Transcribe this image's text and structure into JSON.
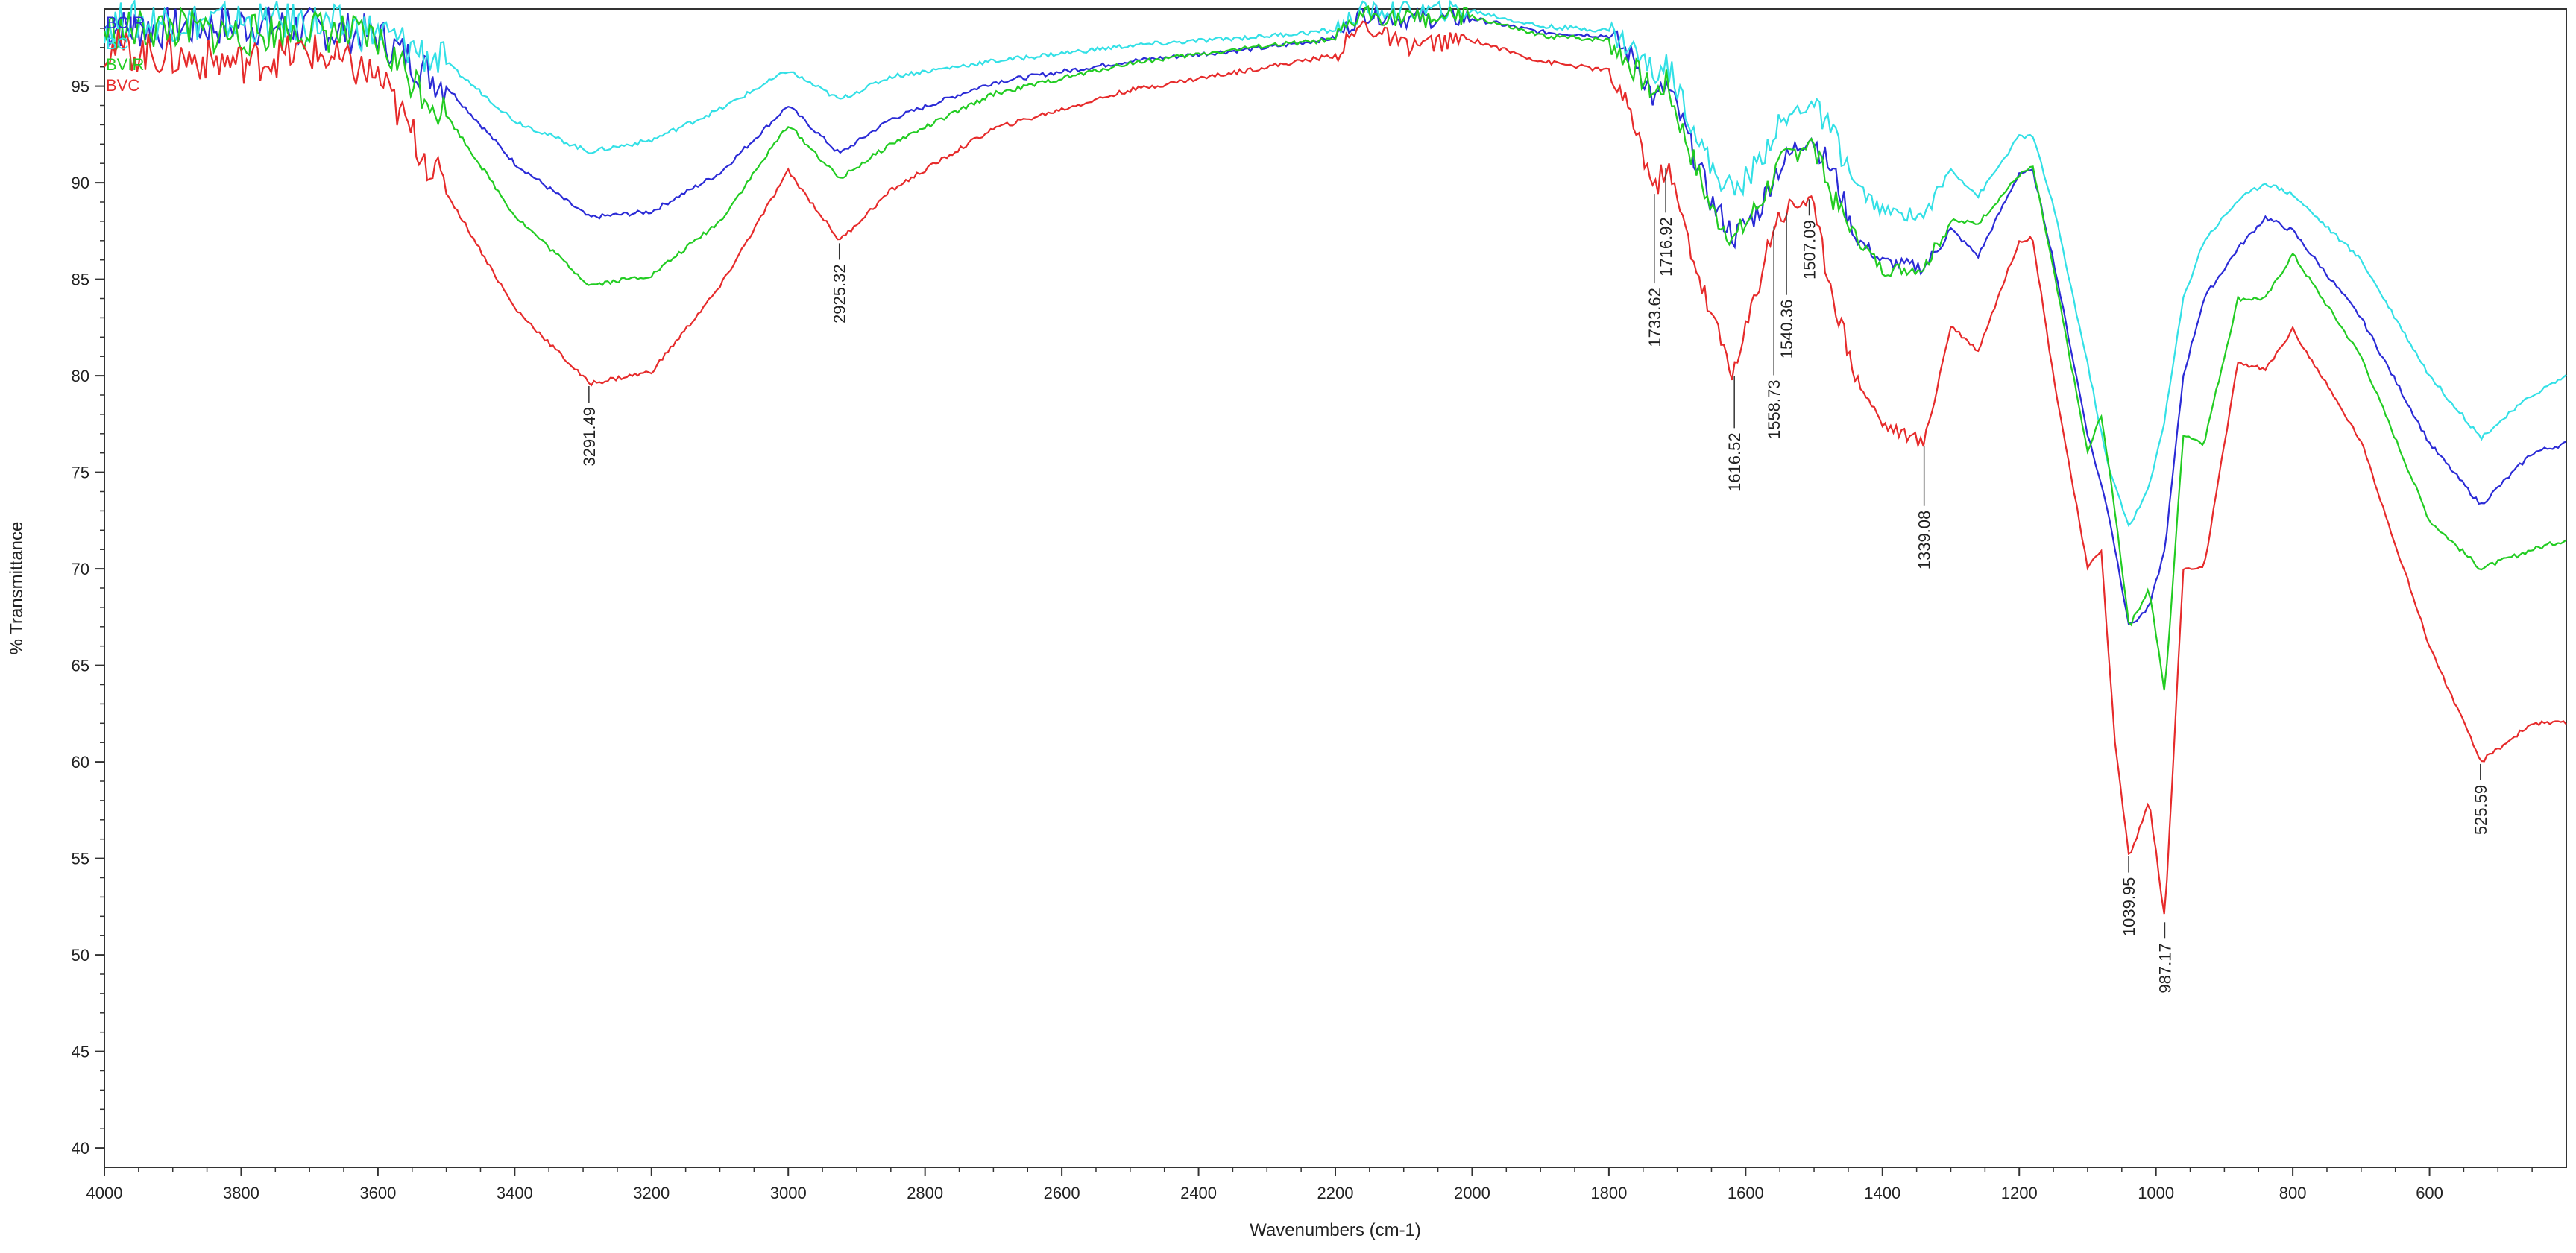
{
  "chart_data": {
    "type": "line",
    "xlabel": "Wavenumbers (cm-1)",
    "ylabel": "% Transmittance",
    "xlim": [
      4000,
      400
    ],
    "ylim": [
      39,
      99
    ],
    "x_reversed": true,
    "x_ticks": [
      4000,
      3800,
      3600,
      3400,
      3200,
      3000,
      2800,
      2600,
      2400,
      2200,
      2000,
      1800,
      1600,
      1400,
      1200,
      1000,
      800,
      600
    ],
    "y_ticks": [
      40,
      45,
      50,
      55,
      60,
      65,
      70,
      75,
      80,
      85,
      90,
      95
    ],
    "grid": false,
    "legend_position": "top-left",
    "series": [
      {
        "name": "BCIR",
        "color": "#2b2bd6",
        "points": [
          [
            4000,
            98
          ],
          [
            3900,
            98
          ],
          [
            3800,
            98.2
          ],
          [
            3700,
            98
          ],
          [
            3600,
            97.6
          ],
          [
            3500,
            95
          ],
          [
            3400,
            91
          ],
          [
            3291,
            88.2
          ],
          [
            3200,
            88.5
          ],
          [
            3100,
            90.5
          ],
          [
            3000,
            94
          ],
          [
            2925,
            91.5
          ],
          [
            2850,
            93.3
          ],
          [
            2700,
            95.2
          ],
          [
            2500,
            96.3
          ],
          [
            2300,
            97
          ],
          [
            2200,
            97.5
          ],
          [
            2160,
            98.8
          ],
          [
            2100,
            98.5
          ],
          [
            2000,
            98.5
          ],
          [
            1900,
            97.8
          ],
          [
            1800,
            97.6
          ],
          [
            1760,
            96.3
          ],
          [
            1733,
            94.2
          ],
          [
            1716,
            95
          ],
          [
            1700,
            93.8
          ],
          [
            1650,
            89
          ],
          [
            1616,
            87.2
          ],
          [
            1580,
            88.6
          ],
          [
            1558,
            90.5
          ],
          [
            1540,
            91.2
          ],
          [
            1507,
            92.6
          ],
          [
            1470,
            90.4
          ],
          [
            1440,
            87.2
          ],
          [
            1400,
            85.9
          ],
          [
            1339,
            85.6
          ],
          [
            1300,
            87.6
          ],
          [
            1260,
            86.2
          ],
          [
            1200,
            90.5
          ],
          [
            1180,
            90.6
          ],
          [
            1150,
            86
          ],
          [
            1100,
            77
          ],
          [
            1070,
            73
          ],
          [
            1039,
            67
          ],
          [
            1010,
            68
          ],
          [
            987,
            71
          ],
          [
            960,
            80
          ],
          [
            930,
            84
          ],
          [
            880,
            86.6
          ],
          [
            840,
            88.2
          ],
          [
            800,
            87.5
          ],
          [
            700,
            83
          ],
          [
            600,
            76.5
          ],
          [
            525,
            73.3
          ],
          [
            450,
            76
          ],
          [
            400,
            76.5
          ]
        ]
      },
      {
        "name": "BC",
        "color": "#33e0e6",
        "points": [
          [
            4000,
            98.3
          ],
          [
            3900,
            98.4
          ],
          [
            3800,
            98.3
          ],
          [
            3700,
            98.3
          ],
          [
            3600,
            97.8
          ],
          [
            3500,
            96.2
          ],
          [
            3400,
            93.2
          ],
          [
            3291,
            91.6
          ],
          [
            3200,
            92.2
          ],
          [
            3100,
            93.8
          ],
          [
            3000,
            95.8
          ],
          [
            2925,
            94.3
          ],
          [
            2850,
            95.5
          ],
          [
            2700,
            96.3
          ],
          [
            2500,
            97.1
          ],
          [
            2300,
            97.6
          ],
          [
            2200,
            97.9
          ],
          [
            2160,
            98.9
          ],
          [
            2100,
            98.9
          ],
          [
            2000,
            98.9
          ],
          [
            1900,
            98.1
          ],
          [
            1800,
            97.9
          ],
          [
            1760,
            96.8
          ],
          [
            1733,
            95.6
          ],
          [
            1716,
            96.2
          ],
          [
            1700,
            95
          ],
          [
            1650,
            90.7
          ],
          [
            1616,
            89.5
          ],
          [
            1580,
            91.1
          ],
          [
            1558,
            92.7
          ],
          [
            1540,
            93.2
          ],
          [
            1507,
            94.3
          ],
          [
            1470,
            92.4
          ],
          [
            1440,
            89.9
          ],
          [
            1400,
            88.5
          ],
          [
            1339,
            88.3
          ],
          [
            1300,
            90.7
          ],
          [
            1260,
            89.3
          ],
          [
            1200,
            92.4
          ],
          [
            1180,
            92.4
          ],
          [
            1150,
            88.8
          ],
          [
            1100,
            80.6
          ],
          [
            1070,
            75.3
          ],
          [
            1039,
            72.2
          ],
          [
            1010,
            74.2
          ],
          [
            987,
            77.8
          ],
          [
            960,
            84
          ],
          [
            930,
            87
          ],
          [
            880,
            89.1
          ],
          [
            840,
            90
          ],
          [
            800,
            89.4
          ],
          [
            700,
            86
          ],
          [
            600,
            80
          ],
          [
            525,
            76.8
          ],
          [
            450,
            79
          ],
          [
            400,
            80
          ]
        ]
      },
      {
        "name": "BVIR",
        "color": "#22cc22",
        "points": [
          [
            4000,
            97.8
          ],
          [
            3900,
            98
          ],
          [
            3800,
            97.6
          ],
          [
            3700,
            98
          ],
          [
            3600,
            97.3
          ],
          [
            3500,
            93.5
          ],
          [
            3400,
            88.3
          ],
          [
            3291,
            84.7
          ],
          [
            3200,
            85.2
          ],
          [
            3100,
            88
          ],
          [
            3000,
            93
          ],
          [
            2925,
            90.2
          ],
          [
            2850,
            92
          ],
          [
            2700,
            94.6
          ],
          [
            2500,
            96.2
          ],
          [
            2300,
            97.1
          ],
          [
            2200,
            97.4
          ],
          [
            2160,
            98.8
          ],
          [
            2100,
            98.5
          ],
          [
            2000,
            98.6
          ],
          [
            1900,
            97.6
          ],
          [
            1800,
            97.4
          ],
          [
            1760,
            95.8
          ],
          [
            1733,
            94.6
          ],
          [
            1716,
            95.2
          ],
          [
            1700,
            93.5
          ],
          [
            1650,
            88.6
          ],
          [
            1616,
            87.1
          ],
          [
            1580,
            88.9
          ],
          [
            1558,
            90.5
          ],
          [
            1540,
            91.3
          ],
          [
            1507,
            92.3
          ],
          [
            1470,
            89
          ],
          [
            1440,
            87.3
          ],
          [
            1400,
            85.5
          ],
          [
            1339,
            85.6
          ],
          [
            1300,
            88
          ],
          [
            1260,
            87.9
          ],
          [
            1200,
            90.4
          ],
          [
            1180,
            90.8
          ],
          [
            1150,
            85.5
          ],
          [
            1100,
            76
          ],
          [
            1080,
            78
          ],
          [
            1060,
            73
          ],
          [
            1039,
            67
          ],
          [
            1010,
            69
          ],
          [
            987,
            63.5
          ],
          [
            960,
            77
          ],
          [
            930,
            76.5
          ],
          [
            880,
            84
          ],
          [
            840,
            84
          ],
          [
            800,
            86.3
          ],
          [
            700,
            81
          ],
          [
            600,
            72.5
          ],
          [
            525,
            70
          ],
          [
            450,
            71
          ],
          [
            400,
            71.5
          ]
        ]
      },
      {
        "name": "BVC",
        "color": "#e62b2b",
        "points": [
          [
            4000,
            97
          ],
          [
            3900,
            96.5
          ],
          [
            3800,
            96.2
          ],
          [
            3700,
            96.8
          ],
          [
            3600,
            95.5
          ],
          [
            3500,
            89.5
          ],
          [
            3400,
            83.5
          ],
          [
            3291,
            79.6
          ],
          [
            3200,
            80.2
          ],
          [
            3100,
            84.6
          ],
          [
            3000,
            90.6
          ],
          [
            2925,
            87
          ],
          [
            2850,
            89.6
          ],
          [
            2700,
            92.8
          ],
          [
            2500,
            94.8
          ],
          [
            2300,
            96
          ],
          [
            2200,
            96.6
          ],
          [
            2160,
            98.2
          ],
          [
            2100,
            97.1
          ],
          [
            2000,
            97.4
          ],
          [
            1900,
            96.3
          ],
          [
            1800,
            95.8
          ],
          [
            1760,
            92.8
          ],
          [
            1733,
            89.5
          ],
          [
            1716,
            91
          ],
          [
            1700,
            89
          ],
          [
            1650,
            83
          ],
          [
            1616,
            80.1
          ],
          [
            1580,
            85
          ],
          [
            1558,
            88
          ],
          [
            1540,
            88.6
          ],
          [
            1507,
            89.3
          ],
          [
            1470,
            84
          ],
          [
            1440,
            80
          ],
          [
            1400,
            77.5
          ],
          [
            1339,
            76.5
          ],
          [
            1300,
            82.6
          ],
          [
            1260,
            81.3
          ],
          [
            1200,
            87
          ],
          [
            1180,
            87.1
          ],
          [
            1150,
            80
          ],
          [
            1100,
            70
          ],
          [
            1080,
            71
          ],
          [
            1060,
            61
          ],
          [
            1039,
            55
          ],
          [
            1010,
            58
          ],
          [
            987,
            51.8
          ],
          [
            960,
            70
          ],
          [
            930,
            70
          ],
          [
            880,
            80.7
          ],
          [
            840,
            80.3
          ],
          [
            800,
            82.4
          ],
          [
            700,
            76.6
          ],
          [
            600,
            66
          ],
          [
            525,
            60
          ],
          [
            450,
            62
          ],
          [
            400,
            62
          ]
        ]
      }
    ],
    "annotations": [
      {
        "label": "3291.49",
        "x": 3291.49,
        "series": "BVC"
      },
      {
        "label": "2925.32",
        "x": 2925.32,
        "series": "BVC"
      },
      {
        "label": "1733.62",
        "x": 1733.62,
        "series": "BVC"
      },
      {
        "label": "1716.92",
        "x": 1716.92,
        "series": "BVC"
      },
      {
        "label": "1616.52",
        "x": 1616.52,
        "series": "BVC"
      },
      {
        "label": "1558.73",
        "x": 1558.73,
        "series": "BVC"
      },
      {
        "label": "1540.36",
        "x": 1540.36,
        "series": "BVC"
      },
      {
        "label": "1507.09",
        "x": 1507.09,
        "series": "BVC"
      },
      {
        "label": "1339.08",
        "x": 1339.08,
        "series": "BVC"
      },
      {
        "label": "1039.95",
        "x": 1039.95,
        "series": "BVC"
      },
      {
        "label": "987.17",
        "x": 987.17,
        "series": "BVC"
      },
      {
        "label": "525.59",
        "x": 525.59,
        "series": "BVC"
      }
    ]
  }
}
